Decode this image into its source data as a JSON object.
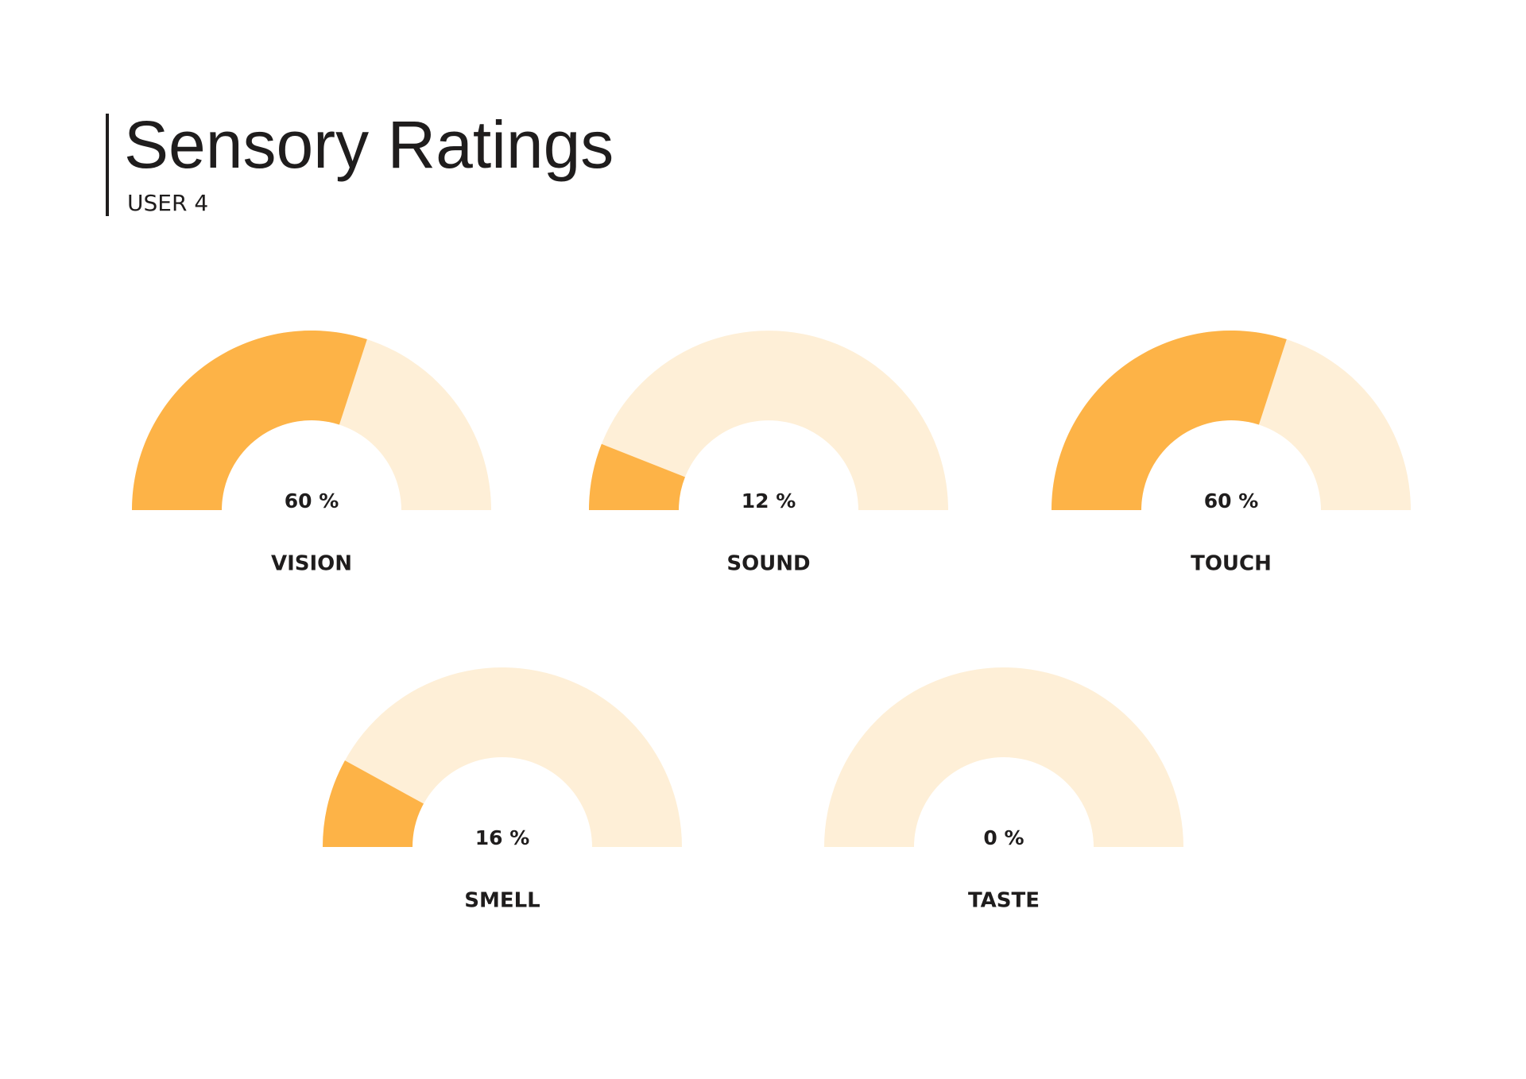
{
  "header": {
    "title": "Sensory Ratings",
    "subtitle": "USER 4"
  },
  "chart_data": [
    {
      "type": "gauge",
      "title": "VISION",
      "values": [
        60
      ],
      "value_labels": [
        "60 %"
      ],
      "ylim": [
        0,
        100
      ],
      "color": "#fdb347",
      "track_color": "#feefd7"
    },
    {
      "type": "gauge",
      "title": "SOUND",
      "values": [
        12
      ],
      "value_labels": [
        "12 %"
      ],
      "ylim": [
        0,
        100
      ],
      "color": "#fdb347",
      "track_color": "#feefd7"
    },
    {
      "type": "gauge",
      "title": "TOUCH",
      "values": [
        60
      ],
      "value_labels": [
        "60 %"
      ],
      "ylim": [
        0,
        100
      ],
      "color": "#fdb347",
      "track_color": "#feefd7"
    },
    {
      "type": "gauge",
      "title": "SMELL",
      "values": [
        16
      ],
      "value_labels": [
        "16 %"
      ],
      "ylim": [
        0,
        100
      ],
      "color": "#fdb347",
      "track_color": "#feefd7"
    },
    {
      "type": "gauge",
      "title": "TASTE",
      "values": [
        0
      ],
      "value_labels": [
        "0 %"
      ],
      "ylim": [
        0,
        100
      ],
      "color": "#fdb347",
      "track_color": "#feefd7"
    }
  ]
}
